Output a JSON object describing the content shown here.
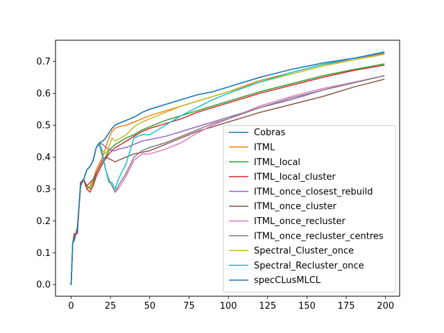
{
  "chart_data": {
    "type": "line",
    "title": "",
    "xlabel": "",
    "ylabel": "",
    "xlim": [
      -9.95,
      208.95
    ],
    "ylim": [
      -0.0365,
      0.7665
    ],
    "xticks": [
      0,
      25,
      50,
      75,
      100,
      125,
      150,
      175,
      200
    ],
    "yticks": [
      0.0,
      0.1,
      0.2,
      0.3,
      0.4,
      0.5,
      0.6,
      0.7
    ],
    "xtick_labels": [
      "0",
      "25",
      "50",
      "75",
      "100",
      "125",
      "150",
      "175",
      "200"
    ],
    "ytick_labels": [
      "0.0",
      "0.1",
      "0.2",
      "0.3",
      "0.4",
      "0.5",
      "0.6",
      "0.7"
    ],
    "grid": false,
    "legend_position": "lower-right",
    "series": [
      {
        "name": "Cobras",
        "color": "#1f77b4",
        "x": [
          0,
          1,
          2,
          4,
          6,
          8,
          10,
          12,
          14,
          16,
          18,
          20,
          22,
          24,
          26,
          28,
          30,
          35,
          40,
          45,
          50,
          60,
          70,
          80,
          90,
          100,
          120,
          140,
          160,
          180,
          199
        ],
        "y": [
          0.0,
          0.13,
          0.14,
          0.18,
          0.31,
          0.33,
          0.36,
          0.37,
          0.39,
          0.43,
          0.445,
          0.45,
          0.46,
          0.475,
          0.49,
          0.5,
          0.505,
          0.515,
          0.525,
          0.54,
          0.55,
          0.565,
          0.58,
          0.595,
          0.605,
          0.62,
          0.65,
          0.675,
          0.695,
          0.71,
          0.728
        ]
      },
      {
        "name": "ITML",
        "color": "#ff7f0e",
        "x": [
          0,
          1,
          2,
          4,
          6,
          8,
          10,
          12,
          14,
          16,
          18,
          20,
          22,
          24,
          26,
          28,
          30,
          35,
          40,
          45,
          50,
          60,
          70,
          80,
          90,
          100,
          120,
          140,
          160,
          180,
          199
        ],
        "y": [
          0.0,
          0.13,
          0.15,
          0.17,
          0.32,
          0.33,
          0.3,
          0.31,
          0.33,
          0.36,
          0.38,
          0.4,
          0.43,
          0.46,
          0.48,
          0.49,
          0.495,
          0.5,
          0.51,
          0.52,
          0.53,
          0.545,
          0.56,
          0.575,
          0.59,
          0.605,
          0.64,
          0.665,
          0.69,
          0.705,
          0.725
        ]
      },
      {
        "name": "ITML_local",
        "color": "#2ca02c",
        "x": [
          0,
          1,
          2,
          4,
          6,
          8,
          10,
          12,
          14,
          16,
          18,
          20,
          22,
          24,
          26,
          28,
          30,
          35,
          40,
          45,
          50,
          60,
          70,
          80,
          90,
          100,
          120,
          140,
          160,
          180,
          199
        ],
        "y": [
          0.0,
          0.13,
          0.15,
          0.17,
          0.32,
          0.33,
          0.31,
          0.3,
          0.32,
          0.35,
          0.37,
          0.39,
          0.4,
          0.42,
          0.43,
          0.44,
          0.445,
          0.46,
          0.47,
          0.485,
          0.495,
          0.515,
          0.53,
          0.545,
          0.56,
          0.575,
          0.605,
          0.63,
          0.655,
          0.675,
          0.692
        ]
      },
      {
        "name": "ITML_local_cluster",
        "color": "#d62728",
        "x": [
          0,
          1,
          2,
          4,
          6,
          8,
          10,
          12,
          14,
          16,
          18,
          20,
          22,
          24,
          26,
          28,
          30,
          35,
          40,
          45,
          50,
          60,
          70,
          80,
          90,
          100,
          120,
          140,
          160,
          180,
          199
        ],
        "y": [
          0.0,
          0.13,
          0.16,
          0.16,
          0.32,
          0.33,
          0.3,
          0.29,
          0.31,
          0.34,
          0.36,
          0.38,
          0.395,
          0.41,
          0.42,
          0.43,
          0.435,
          0.45,
          0.465,
          0.48,
          0.49,
          0.505,
          0.52,
          0.54,
          0.555,
          0.57,
          0.6,
          0.625,
          0.65,
          0.672,
          0.688
        ]
      },
      {
        "name": "ITML_once_closest_rebuild",
        "color": "#9467bd",
        "x": [
          0,
          1,
          2,
          4,
          6,
          8,
          10,
          12,
          14,
          16,
          18,
          20,
          22,
          24,
          26,
          28,
          30,
          35,
          40,
          45,
          50,
          60,
          70,
          80,
          90,
          100,
          120,
          140,
          160,
          180,
          199
        ],
        "y": [
          0.0,
          0.13,
          0.14,
          0.18,
          0.31,
          0.33,
          0.36,
          0.37,
          0.39,
          0.43,
          0.445,
          0.44,
          0.43,
          0.425,
          0.42,
          0.42,
          0.425,
          0.43,
          0.44,
          0.45,
          0.455,
          0.465,
          0.48,
          0.495,
          0.51,
          0.525,
          0.555,
          0.58,
          0.61,
          0.635,
          0.655
        ]
      },
      {
        "name": "ITML_once_cluster",
        "color": "#8c564b",
        "x": [
          0,
          1,
          2,
          4,
          6,
          8,
          10,
          12,
          14,
          16,
          18,
          20,
          22,
          24,
          26,
          28,
          30,
          35,
          40,
          45,
          50,
          60,
          70,
          80,
          90,
          100,
          120,
          140,
          160,
          180,
          199
        ],
        "y": [
          0.0,
          0.13,
          0.15,
          0.17,
          0.32,
          0.33,
          0.31,
          0.32,
          0.33,
          0.35,
          0.37,
          0.39,
          0.4,
          0.395,
          0.39,
          0.385,
          0.39,
          0.4,
          0.41,
          0.415,
          0.42,
          0.44,
          0.46,
          0.48,
          0.495,
          0.51,
          0.54,
          0.565,
          0.59,
          0.62,
          0.644
        ]
      },
      {
        "name": "ITML_once_recluster",
        "color": "#e377c2",
        "x": [
          0,
          1,
          2,
          4,
          6,
          8,
          10,
          12,
          14,
          16,
          18,
          20,
          22,
          24,
          26,
          28,
          30,
          35,
          40,
          45,
          50,
          60,
          70,
          80,
          90,
          100,
          120,
          140,
          160,
          180,
          199
        ],
        "y": [
          0.0,
          0.13,
          0.14,
          0.18,
          0.31,
          0.33,
          0.36,
          0.37,
          0.39,
          0.43,
          0.44,
          0.4,
          0.36,
          0.33,
          0.31,
          0.29,
          0.3,
          0.34,
          0.39,
          0.41,
          0.41,
          0.425,
          0.445,
          0.475,
          0.5,
          0.52,
          0.56,
          0.59,
          0.615,
          0.635,
          0.654
        ]
      },
      {
        "name": "ITML_once_recluster_centres",
        "color": "#7f7f7f",
        "x": [
          0,
          1,
          2,
          4,
          6,
          8,
          10,
          12,
          14,
          16,
          18,
          20,
          22,
          24,
          26,
          28,
          30,
          35,
          40,
          45,
          50,
          60,
          70,
          80,
          90,
          100,
          120,
          140,
          160,
          180,
          199
        ],
        "y": [
          0.0,
          0.13,
          0.14,
          0.18,
          0.31,
          0.33,
          0.36,
          0.37,
          0.39,
          0.43,
          0.44,
          0.4,
          0.36,
          0.33,
          0.31,
          0.29,
          0.31,
          0.35,
          0.4,
          0.42,
          0.43,
          0.445,
          0.465,
          0.485,
          0.505,
          0.52,
          0.555,
          0.585,
          0.61,
          0.633,
          0.655
        ]
      },
      {
        "name": "Spectral_Cluster_once",
        "color": "#bcbd22",
        "x": [
          0,
          1,
          2,
          4,
          6,
          8,
          10,
          12,
          14,
          16,
          18,
          20,
          22,
          24,
          26,
          28,
          30,
          35,
          40,
          45,
          50,
          60,
          70,
          80,
          90,
          100,
          120,
          140,
          160,
          180,
          199
        ],
        "y": [
          0.0,
          0.13,
          0.14,
          0.18,
          0.31,
          0.33,
          0.36,
          0.37,
          0.39,
          0.43,
          0.445,
          0.42,
          0.41,
          0.43,
          0.46,
          0.45,
          0.455,
          0.47,
          0.495,
          0.51,
          0.52,
          0.54,
          0.56,
          0.575,
          0.59,
          0.605,
          0.635,
          0.66,
          0.685,
          0.705,
          0.722
        ]
      },
      {
        "name": "Spectral_Recluster_once",
        "color": "#17becf",
        "x": [
          0,
          1,
          2,
          4,
          6,
          8,
          10,
          12,
          14,
          16,
          18,
          20,
          22,
          24,
          26,
          28,
          30,
          35,
          40,
          45,
          50,
          60,
          70,
          80,
          90,
          100,
          120,
          140,
          160,
          180,
          199
        ],
        "y": [
          0.0,
          0.13,
          0.14,
          0.18,
          0.31,
          0.33,
          0.36,
          0.37,
          0.39,
          0.43,
          0.445,
          0.41,
          0.36,
          0.32,
          0.32,
          0.3,
          0.33,
          0.38,
          0.46,
          0.47,
          0.47,
          0.5,
          0.53,
          0.555,
          0.58,
          0.6,
          0.635,
          0.665,
          0.69,
          0.71,
          0.73
        ]
      },
      {
        "name": "specCLusMLCL",
        "color": "#1f77b4",
        "x": [
          0,
          1,
          2,
          4,
          6,
          8,
          10,
          12,
          14,
          16,
          18,
          20,
          22,
          24,
          26,
          28,
          30,
          35,
          40,
          45,
          50,
          60,
          70,
          80,
          90,
          100,
          120,
          140,
          160,
          180,
          199
        ],
        "y": [
          0.0,
          0.13,
          0.14,
          0.18,
          0.31,
          0.33,
          0.36,
          0.37,
          0.39,
          0.43,
          0.445,
          0.45,
          0.46,
          0.475,
          0.49,
          0.5,
          0.505,
          0.515,
          0.525,
          0.54,
          0.55,
          0.565,
          0.58,
          0.595,
          0.605,
          0.62,
          0.65,
          0.675,
          0.695,
          0.71,
          0.728
        ]
      }
    ]
  }
}
